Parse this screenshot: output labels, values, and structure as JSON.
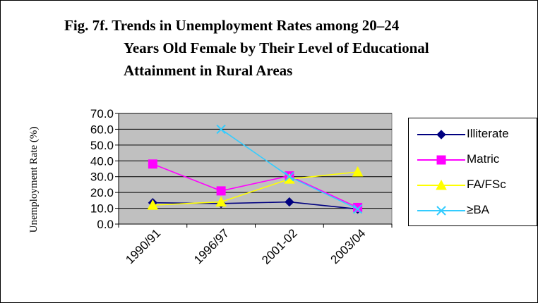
{
  "title_lines": [
    "Fig. 7f. Trends in Unemployment Rates among 20–24",
    "Years Old Female by Their Level of Educational",
    "Attainment in Rural Areas"
  ],
  "chart_data": {
    "type": "line",
    "title": "Fig. 7f. Trends in Unemployment Rates among 20–24 Years Old Female by Their Level of Educational Attainment in Rural Areas",
    "xlabel": "",
    "ylabel": "Unemployment Rate (%)",
    "categories": [
      "1990/91",
      "1996/97",
      "2001-02",
      "2003/04"
    ],
    "ylim": [
      0,
      70
    ],
    "yticks": [
      "0.0",
      "10.0",
      "20.0",
      "30.0",
      "40.0",
      "50.0",
      "60.0",
      "70.0"
    ],
    "grid": true,
    "legend_position": "right",
    "plot_background": "#c0c0c0",
    "series": [
      {
        "name": "Illiterate",
        "values": [
          13.5,
          13.0,
          14.0,
          9.5
        ],
        "color": "#000080",
        "marker": "diamond"
      },
      {
        "name": "Matric",
        "values": [
          38.0,
          21.0,
          30.5,
          10.5
        ],
        "color": "#ff00ff",
        "marker": "square"
      },
      {
        "name": "FA/FSc",
        "values": [
          12.0,
          14.0,
          28.5,
          33.0
        ],
        "color": "#ffff00",
        "marker": "triangle"
      },
      {
        "name": "≥BA",
        "values": [
          null,
          60.0,
          30.0,
          9.5
        ],
        "color": "#33ccff",
        "marker": "x"
      }
    ]
  }
}
